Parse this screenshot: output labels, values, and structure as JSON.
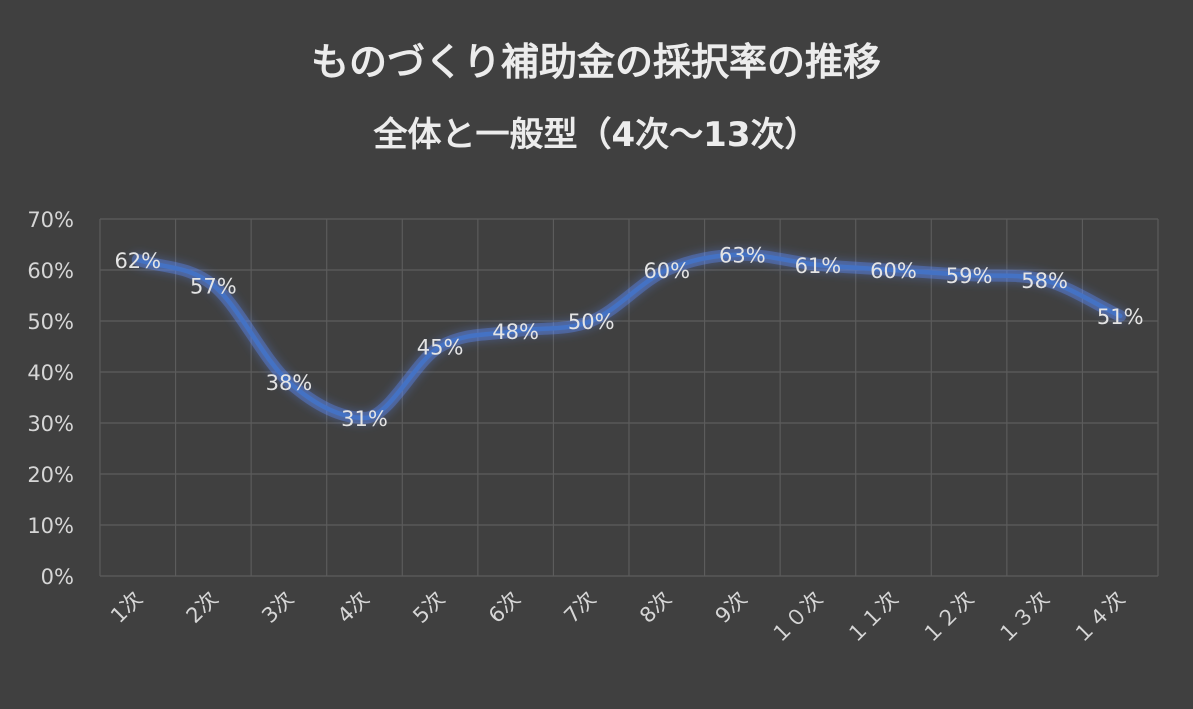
{
  "colors": {
    "background": "#404040",
    "grid": "#5c5c5c",
    "line": "#4472c4",
    "glow": "#5b8cff",
    "title": "#ececec",
    "text": "#d6d6d6"
  },
  "chart_data": {
    "type": "line",
    "title_lines": [
      "ものづくり補助金の採択率の推移",
      "全体と一般型（4次～13次）"
    ],
    "xlabel": "",
    "ylabel": "",
    "categories": [
      "1次",
      "2次",
      "3次",
      "4次",
      "5次",
      "6次",
      "7次",
      "8次",
      "9次",
      "１０次",
      "１１次",
      "１２次",
      "１３次",
      "１４次"
    ],
    "series": [
      {
        "values": [
          62,
          57,
          38,
          31,
          45,
          48,
          50,
          60,
          63,
          61,
          60,
          59,
          58,
          51
        ],
        "labels": [
          "62%",
          "57%",
          "38%",
          "31%",
          "45%",
          "48%",
          "50%",
          "60%",
          "63%",
          "61%",
          "60%",
          "59%",
          "58%",
          "51%"
        ]
      }
    ],
    "ylim": [
      0,
      70
    ],
    "y_ticks": [
      "0%",
      "10%",
      "20%",
      "30%",
      "40%",
      "50%",
      "60%",
      "70%"
    ],
    "grid": true,
    "legend": "none"
  }
}
